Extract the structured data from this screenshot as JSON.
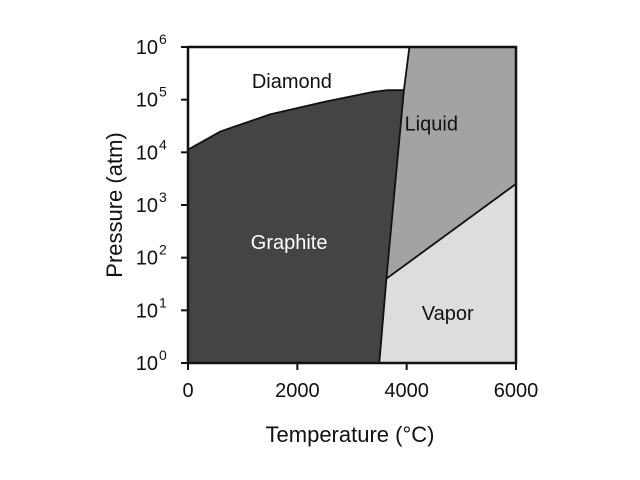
{
  "chart_data": {
    "type": "area",
    "title": "",
    "xlabel": "Temperature (°C)",
    "ylabel": "Pressure (atm)",
    "xlim": [
      0,
      6000
    ],
    "ylim_log10": [
      0,
      6
    ],
    "yscale": "log",
    "x_ticks": [
      {
        "value": 0,
        "label": "0"
      },
      {
        "value": 2000,
        "label": "2000"
      },
      {
        "value": 4000,
        "label": "4000"
      },
      {
        "value": 6000,
        "label": "6000"
      }
    ],
    "y_ticks": [
      {
        "exp": 0,
        "base": "10",
        "sup": "0"
      },
      {
        "exp": 1,
        "base": "10",
        "sup": "1"
      },
      {
        "exp": 2,
        "base": "10",
        "sup": "2"
      },
      {
        "exp": 3,
        "base": "10",
        "sup": "3"
      },
      {
        "exp": 4,
        "base": "10",
        "sup": "4"
      },
      {
        "exp": 5,
        "base": "10",
        "sup": "5"
      },
      {
        "exp": 6,
        "base": "10",
        "sup": "6"
      }
    ],
    "regions": [
      {
        "name": "Diamond",
        "color": "#ffffff",
        "label_color": "#111111",
        "label_at": {
          "x": 1900,
          "log_p": 5.35
        },
        "polygon": [
          [
            0,
            4.05
          ],
          [
            600,
            4.4
          ],
          [
            1500,
            4.72
          ],
          [
            2500,
            4.96
          ],
          [
            3400,
            5.15
          ],
          [
            3650,
            5.18
          ],
          [
            3950,
            5.18
          ],
          [
            4050,
            6
          ],
          [
            0,
            6
          ]
        ]
      },
      {
        "name": "Graphite",
        "color": "#444444",
        "label_color": "#ffffff",
        "label_at": {
          "x": 1850,
          "log_p": 2.3
        },
        "polygon": [
          [
            0,
            0
          ],
          [
            3500,
            0
          ],
          [
            3630,
            1.6
          ],
          [
            3950,
            5.18
          ],
          [
            3650,
            5.18
          ],
          [
            3400,
            5.15
          ],
          [
            2500,
            4.96
          ],
          [
            1500,
            4.72
          ],
          [
            600,
            4.4
          ],
          [
            0,
            4.05
          ]
        ]
      },
      {
        "name": "Liquid",
        "color": "#a3a3a3",
        "label_color": "#111111",
        "label_at": {
          "x": 4450,
          "log_p": 4.55
        },
        "polygon": [
          [
            3630,
            1.6
          ],
          [
            3950,
            5.18
          ],
          [
            4050,
            6
          ],
          [
            6000,
            6
          ],
          [
            6000,
            3.4
          ]
        ]
      },
      {
        "name": "Vapor",
        "color": "#dddddd",
        "label_color": "#111111",
        "label_at": {
          "x": 4750,
          "log_p": 0.95
        },
        "polygon": [
          [
            3500,
            0
          ],
          [
            6000,
            0
          ],
          [
            6000,
            3.4
          ],
          [
            3630,
            1.6
          ]
        ]
      }
    ],
    "boundaries": [
      [
        [
          0,
          4.05
        ],
        [
          600,
          4.4
        ],
        [
          1500,
          4.72
        ],
        [
          2500,
          4.96
        ],
        [
          3400,
          5.15
        ],
        [
          3650,
          5.18
        ],
        [
          3950,
          5.18
        ]
      ],
      [
        [
          3500,
          0
        ],
        [
          3630,
          1.6
        ],
        [
          3950,
          5.18
        ],
        [
          4050,
          6
        ]
      ],
      [
        [
          3630,
          1.6
        ],
        [
          6000,
          3.4
        ]
      ]
    ],
    "grid": false,
    "legend": "none"
  }
}
